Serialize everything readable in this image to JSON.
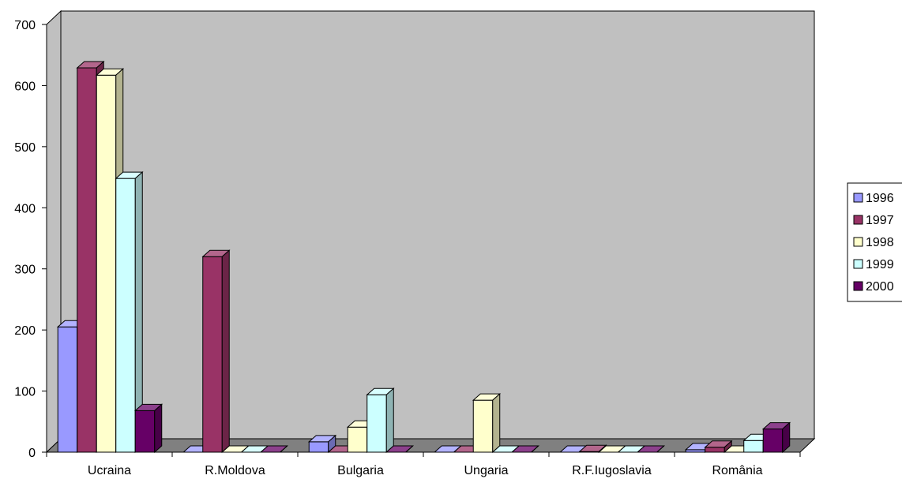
{
  "chart_data": {
    "type": "bar",
    "categories": [
      "Ucraina",
      "R.Moldova",
      "Bulgaria",
      "Ungaria",
      "R.F.Iugoslavia",
      "România"
    ],
    "series": [
      {
        "name": "1996",
        "color": "#9999ff",
        "values": [
          205,
          0,
          17,
          0,
          0,
          4
        ]
      },
      {
        "name": "1997",
        "color": "#993366",
        "values": [
          629,
          320,
          0,
          0,
          1,
          8
        ]
      },
      {
        "name": "1998",
        "color": "#ffffcc",
        "values": [
          617,
          0,
          41,
          85,
          0,
          0
        ]
      },
      {
        "name": "1999",
        "color": "#ccffff",
        "values": [
          448,
          0,
          94,
          0,
          0,
          19
        ]
      },
      {
        "name": "2000",
        "color": "#660066",
        "values": [
          68,
          0,
          0,
          0,
          0,
          38
        ]
      }
    ],
    "yticks": [
      "0",
      "100",
      "200",
      "300",
      "400",
      "500",
      "600",
      "700"
    ],
    "ylim": [
      0,
      700
    ],
    "grid": false,
    "legend": "right",
    "wall_color": "#c0c0c0",
    "floor_color": "#808080"
  }
}
